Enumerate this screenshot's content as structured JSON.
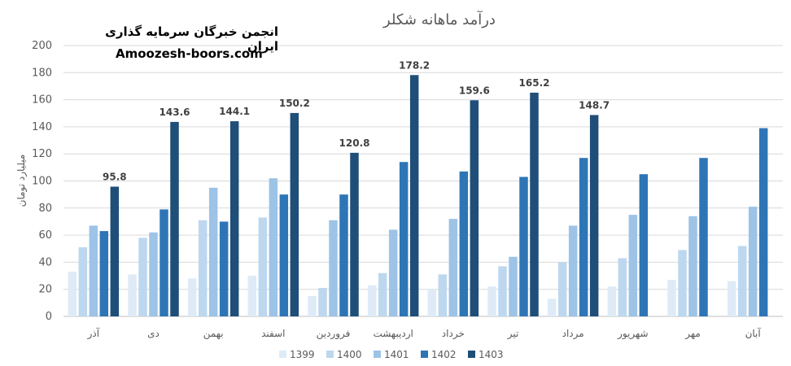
{
  "watermark": {
    "line1": "انجمن خبرگان سرمایه گذاری ایران",
    "line2": "Amoozesh-boors.com"
  },
  "chart_data": {
    "type": "bar",
    "title": "درآمد ماهانه شکلر",
    "xlabel": "",
    "ylabel": "میلیارد تومان",
    "ylim": [
      0,
      200
    ],
    "yticks": [
      0,
      20,
      40,
      60,
      80,
      100,
      120,
      140,
      160,
      180,
      200
    ],
    "grid": true,
    "legend": "bottom",
    "categories": [
      "آذر",
      "دی",
      "بهمن",
      "اسفند",
      "فروردین",
      "اردیبهشت",
      "خرداد",
      "تیر",
      "مرداد",
      "شهریور",
      "مهر",
      "آبان"
    ],
    "series": [
      {
        "name": "1399",
        "color": "#deebf7",
        "values": [
          33,
          31,
          28,
          30,
          15,
          23,
          20,
          22,
          13,
          22,
          27,
          26
        ]
      },
      {
        "name": "1400",
        "color": "#bdd7ee",
        "values": [
          51,
          58,
          71,
          73,
          21,
          32,
          31,
          37,
          40,
          43,
          49,
          52
        ]
      },
      {
        "name": "1401",
        "color": "#9dc3e6",
        "values": [
          67,
          62,
          95,
          102,
          71,
          64,
          72,
          44,
          67,
          75,
          74,
          81
        ]
      },
      {
        "name": "1402",
        "color": "#2e75b6",
        "values": [
          63,
          79,
          70,
          90,
          90,
          114,
          107,
          103,
          117,
          105,
          117,
          139
        ]
      },
      {
        "name": "1403",
        "color": "#1f4e79",
        "values": [
          95.8,
          143.6,
          144.1,
          150.2,
          120.8,
          178.2,
          159.6,
          165.2,
          148.7,
          null,
          null,
          null
        ],
        "labels": [
          "95.8",
          "143.6",
          "144.1",
          "150.2",
          "120.8",
          "178.2",
          "159.6",
          "165.2",
          "148.7",
          "",
          "",
          ""
        ]
      }
    ]
  }
}
